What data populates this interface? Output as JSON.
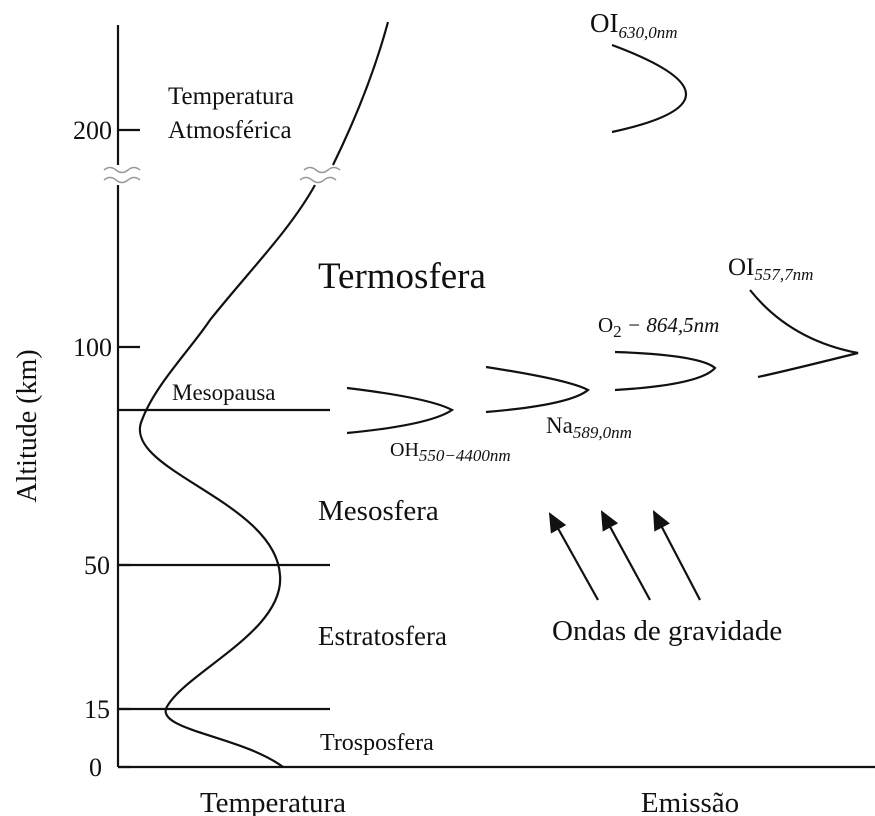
{
  "axis": {
    "label": "Altitude (km)",
    "ticks": [
      "0",
      "15",
      "50",
      "100",
      "200"
    ]
  },
  "layers": [
    "Termosfera",
    "Mesosfera",
    "Estratosfera",
    "Trosposfera"
  ],
  "boundary": "Mesopausa",
  "temperature_label": [
    "Temperatura",
    "Atmosférica"
  ],
  "emissions": [
    {
      "name": "OI",
      "subscript": "630,0nm"
    },
    {
      "name": "OI",
      "subscript": "557,7nm"
    },
    {
      "name": "O",
      "subscript": "2",
      "suffix": " − 864,5nm"
    },
    {
      "name": "Na",
      "subscript": "589,0nm"
    },
    {
      "name": "OH",
      "subscript": "550−4400nm"
    }
  ],
  "waves_label": "Ondas de gravidade",
  "bottom_labels": [
    "Temperatura",
    "Emissão"
  ]
}
